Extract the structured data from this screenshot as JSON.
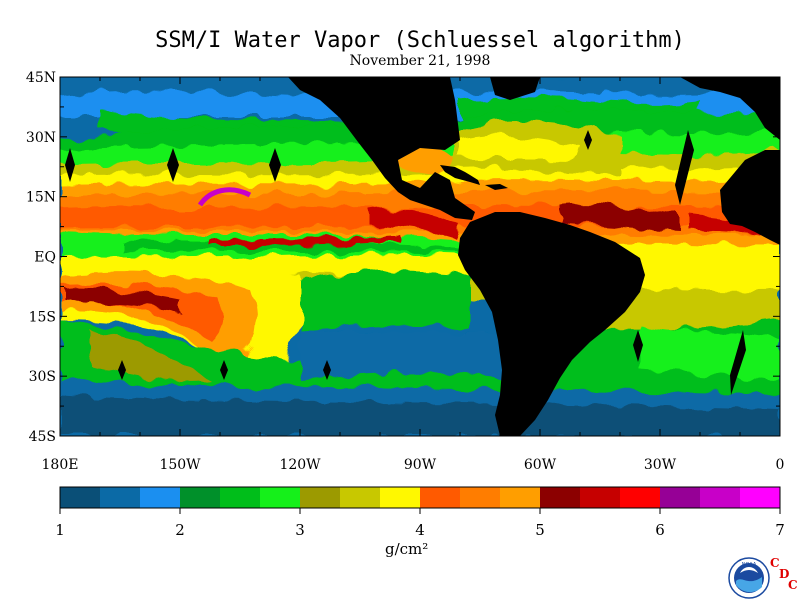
{
  "title": "SSM/I Water Vapor (Schluessel algorithm)",
  "date": "November 21, 1998",
  "lat_labels": [
    "45N",
    "30N",
    "15N",
    "EQ",
    "15S",
    "30S",
    "45S"
  ],
  "lon_labels": [
    "180E",
    "150W",
    "120W",
    "90W",
    "60W",
    "30W",
    "0"
  ],
  "colorbar": {
    "colors": [
      "#0a4f77",
      "#0b6aa6",
      "#1b8ff0",
      "#00902a",
      "#00be1a",
      "#15f01a",
      "#9c9a00",
      "#c8c800",
      "#fff800",
      "#ff5a00",
      "#ff7d00",
      "#ff9e00",
      "#8c0000",
      "#c60000",
      "#ff0000",
      "#960096",
      "#c800c8",
      "#ff00ff"
    ],
    "tick_labels": [
      "1",
      "2",
      "3",
      "4",
      "5",
      "6",
      "7"
    ],
    "unit": "g/cm²"
  },
  "logo": {
    "noaa": "NOAA",
    "letters": [
      "C",
      "D",
      "C"
    ]
  }
}
